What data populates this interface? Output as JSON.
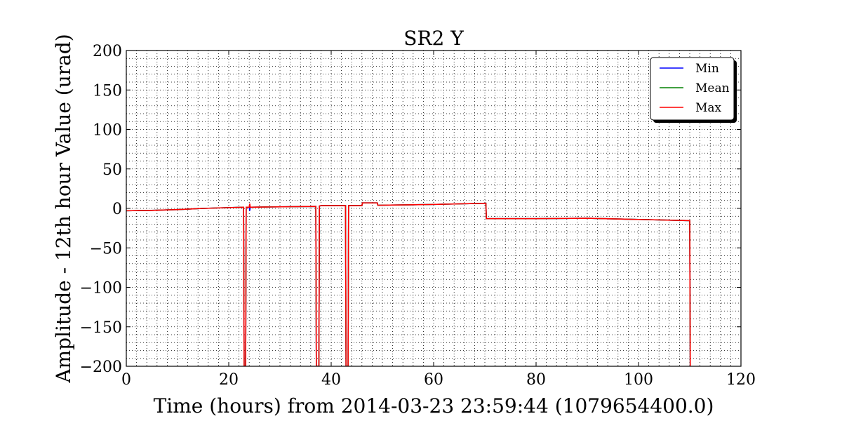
{
  "chart_data": {
    "type": "line",
    "title": "SR2 Y",
    "xlabel": "Time (hours) from 2014-03-23 23:59:44 (1079654400.0)",
    "ylabel": "Amplitude - 12th hour Value (urad)",
    "xlim": [
      0,
      120
    ],
    "ylim": [
      -200,
      200
    ],
    "xticks": [
      0,
      20,
      40,
      60,
      80,
      100,
      120
    ],
    "yticks": [
      200,
      150,
      100,
      50,
      0,
      -50,
      -100,
      -150,
      -200
    ],
    "xtick_labels": [
      "0",
      "20",
      "40",
      "60",
      "80",
      "100",
      "120"
    ],
    "ytick_labels": [
      "200",
      "150",
      "100",
      "50",
      "0",
      "−50",
      "−100",
      "−150",
      "−200"
    ],
    "grid": true,
    "legend_position": "top-right",
    "series": [
      {
        "name": "Min",
        "color": "#0000ff",
        "x": [
          0,
          5,
          10,
          15,
          20,
          22.9,
          23.0,
          23.3,
          23.4,
          24.0,
          24.1,
          24.2,
          24.3,
          30,
          37.0,
          37.1,
          37.6,
          37.7,
          38,
          42.8,
          42.9,
          43.3,
          43.4,
          44,
          46.0,
          46.1,
          49.0,
          49.1,
          55,
          60,
          70.2,
          70.3,
          80,
          90,
          100,
          110.0,
          110.1
        ],
        "values": [
          -3,
          -2.5,
          -1.5,
          0,
          1,
          1.5,
          -200,
          -200,
          1.5,
          1.5,
          -3,
          1.5,
          1.5,
          2,
          2.5,
          -200,
          -200,
          3,
          3.5,
          3.5,
          -200,
          -200,
          3.5,
          3.5,
          3.5,
          7,
          7,
          4,
          4.5,
          5,
          6.5,
          -13,
          -13,
          -12.5,
          -14,
          -15.5,
          -200
        ]
      },
      {
        "name": "Mean",
        "color": "#008000",
        "x": [
          0,
          5,
          10,
          15,
          20,
          22.9,
          23.0,
          23.3,
          23.4,
          24.0,
          24.1,
          24.2,
          24.3,
          30,
          37.0,
          37.1,
          37.6,
          37.7,
          38,
          42.8,
          42.9,
          43.3,
          43.4,
          44,
          46.0,
          46.1,
          49.0,
          49.1,
          55,
          60,
          70.2,
          70.3,
          80,
          90,
          100,
          110.0,
          110.1
        ],
        "values": [
          -3,
          -2.5,
          -1.5,
          0,
          1,
          1.5,
          -200,
          -200,
          1.5,
          1.5,
          1.5,
          1.5,
          1.5,
          2,
          2.5,
          -200,
          -200,
          3,
          3.5,
          3.5,
          -200,
          -200,
          3.5,
          3.5,
          3.5,
          7,
          7,
          4,
          4.5,
          5,
          6.5,
          -13,
          -13,
          -12.5,
          -14,
          -15.5,
          -200
        ]
      },
      {
        "name": "Max",
        "color": "#ff0000",
        "x": [
          0,
          5,
          10,
          15,
          20,
          22.9,
          23.0,
          23.3,
          23.4,
          24.0,
          24.1,
          24.2,
          24.3,
          30,
          37.0,
          37.1,
          37.6,
          37.7,
          38,
          42.8,
          42.9,
          43.3,
          43.4,
          44,
          46.0,
          46.1,
          49.0,
          49.1,
          55,
          60,
          70.2,
          70.3,
          80,
          90,
          100,
          110.0,
          110.1
        ],
        "values": [
          -3,
          -2.5,
          -1.5,
          0,
          1,
          1.5,
          -200,
          -200,
          1.5,
          1.5,
          6,
          1.5,
          1.5,
          2,
          2.5,
          -200,
          -200,
          3,
          3.5,
          3.5,
          -200,
          -200,
          3.5,
          3.5,
          3.5,
          7,
          7,
          4,
          4.5,
          5,
          6.5,
          -13,
          -13,
          -12.5,
          -14,
          -15.5,
          -200
        ]
      }
    ]
  }
}
